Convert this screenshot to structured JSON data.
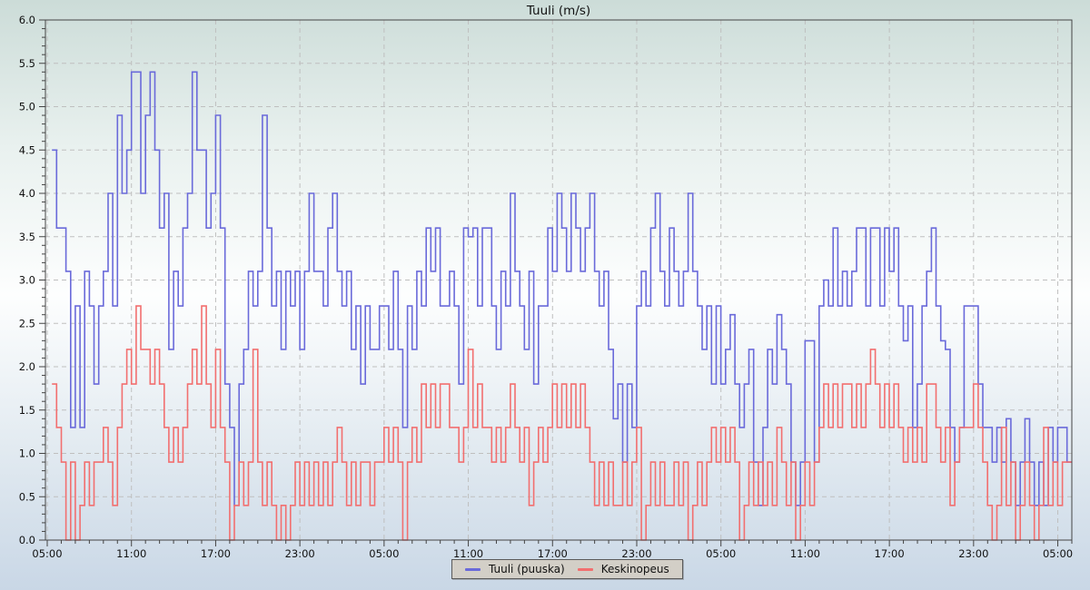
{
  "title": "Tuuli (m/s)",
  "legend": {
    "items": [
      {
        "label": "Tuuli (puuska)",
        "color": "#6a6ada"
      },
      {
        "label": "Keskinopeus",
        "color": "#f26f6f"
      }
    ]
  },
  "colors": {
    "background_top": "#ccdcd8",
    "background_middle": "#fdfefe",
    "background_bottom": "#c9d7e6",
    "grid": "#bfbfbf",
    "frame": "#444444",
    "text": "#111111",
    "legend_background": "#d3cfc7",
    "gust_line": "#6a6ada",
    "average_line": "#f26f6f"
  },
  "chart_data": {
    "type": "line",
    "step": true,
    "title": "Tuuli (m/s)",
    "xlabel": "",
    "ylabel": "",
    "ylim": [
      0.0,
      6.0
    ],
    "y_major_step": 0.5,
    "y_minor_step": 0.1,
    "y_tick_labels": [
      "0.0",
      "0.5",
      "1.0",
      "1.5",
      "2.0",
      "2.5",
      "3.0",
      "3.5",
      "4.0",
      "4.5",
      "5.0",
      "5.5",
      "6.0"
    ],
    "x_axis_hours_range": [
      4.87,
      78.0
    ],
    "x_major_step_hours": 6,
    "x_minor_step_hours": 1,
    "x_tick_hours": [
      5,
      11,
      17,
      23,
      29,
      35,
      41,
      47,
      53,
      59,
      65,
      71,
      77
    ],
    "x_tick_labels": [
      "05:00",
      "11:00",
      "17:00",
      "23:00",
      "05:00",
      "11:00",
      "17:00",
      "23:00",
      "05:00",
      "11:00",
      "17:00",
      "23:00",
      "05:00"
    ],
    "grid": "dashed",
    "legend_position": "bottom-center",
    "sample_start_hour": 5.3333,
    "sample_interval_hours": 0.3333,
    "series": [
      {
        "name": "Tuuli (puuska)",
        "color": "#6a6ada",
        "values": [
          4.5,
          3.6,
          3.6,
          3.1,
          1.3,
          2.7,
          1.3,
          3.1,
          2.7,
          1.8,
          2.7,
          3.1,
          4.0,
          2.7,
          4.9,
          4.0,
          4.5,
          5.4,
          5.4,
          4.0,
          4.9,
          5.4,
          4.5,
          3.6,
          4.0,
          2.2,
          3.1,
          2.7,
          3.6,
          4.0,
          5.4,
          4.5,
          4.5,
          3.6,
          4.0,
          4.9,
          3.6,
          1.8,
          1.3,
          0.4,
          1.8,
          2.2,
          3.1,
          2.7,
          3.1,
          4.9,
          3.6,
          2.7,
          3.1,
          2.2,
          3.1,
          2.7,
          3.1,
          2.2,
          3.1,
          4.0,
          3.1,
          3.1,
          2.7,
          3.6,
          4.0,
          3.1,
          2.7,
          3.1,
          2.2,
          2.7,
          1.8,
          2.7,
          2.2,
          2.2,
          2.7,
          2.7,
          2.2,
          3.1,
          2.2,
          1.3,
          2.7,
          2.2,
          3.1,
          2.7,
          3.6,
          3.1,
          3.6,
          2.7,
          2.7,
          3.1,
          2.7,
          1.8,
          3.6,
          3.5,
          3.6,
          2.7,
          3.6,
          3.6,
          2.7,
          2.2,
          3.1,
          2.7,
          4.0,
          3.1,
          2.7,
          2.2,
          3.1,
          1.8,
          2.7,
          2.7,
          3.6,
          3.1,
          4.0,
          3.6,
          3.1,
          4.0,
          3.6,
          3.1,
          3.6,
          4.0,
          3.1,
          2.7,
          3.1,
          2.2,
          1.4,
          1.8,
          0.9,
          1.8,
          1.3,
          2.7,
          3.1,
          2.7,
          3.6,
          4.0,
          3.1,
          2.7,
          3.6,
          3.1,
          2.7,
          3.1,
          4.0,
          3.1,
          2.7,
          2.2,
          2.7,
          1.8,
          2.7,
          1.8,
          2.2,
          2.6,
          1.8,
          1.3,
          1.8,
          2.2,
          0.9,
          0.4,
          1.3,
          2.2,
          1.8,
          2.6,
          2.2,
          1.8,
          0.9,
          0.4,
          0.9,
          2.3,
          2.3,
          0.9,
          2.7,
          3.0,
          2.7,
          3.6,
          2.7,
          3.1,
          2.7,
          3.1,
          3.6,
          3.6,
          2.7,
          3.6,
          3.6,
          2.7,
          3.6,
          3.1,
          3.6,
          2.7,
          2.3,
          2.7,
          1.3,
          1.8,
          2.7,
          3.1,
          3.6,
          2.7,
          2.3,
          2.2,
          1.3,
          0.9,
          1.3,
          2.7,
          2.7,
          2.7,
          1.8,
          1.3,
          1.3,
          0.9,
          1.3,
          0.9,
          1.4,
          0.9,
          0.4,
          0.9,
          1.4,
          0.9,
          0.4,
          0.9,
          0.4,
          1.3,
          0.9,
          1.3,
          1.3,
          0.9
        ]
      },
      {
        "name": "Keskinopeus",
        "color": "#f26f6f",
        "values": [
          1.8,
          1.3,
          0.9,
          0.0,
          0.9,
          0.0,
          0.4,
          0.9,
          0.4,
          0.9,
          0.9,
          1.3,
          0.9,
          0.4,
          1.3,
          1.8,
          2.2,
          1.8,
          2.7,
          2.2,
          2.2,
          1.8,
          2.2,
          1.8,
          1.3,
          0.9,
          1.3,
          0.9,
          1.3,
          1.8,
          2.2,
          1.8,
          2.7,
          1.8,
          1.3,
          2.2,
          1.3,
          0.9,
          0.0,
          0.4,
          0.9,
          0.4,
          0.9,
          2.2,
          0.9,
          0.4,
          0.9,
          0.4,
          0.0,
          0.4,
          0.0,
          0.4,
          0.9,
          0.4,
          0.9,
          0.4,
          0.9,
          0.4,
          0.9,
          0.4,
          0.9,
          1.3,
          0.9,
          0.4,
          0.9,
          0.4,
          0.9,
          0.9,
          0.4,
          0.9,
          0.9,
          1.3,
          0.9,
          1.3,
          0.9,
          0.0,
          0.9,
          1.3,
          0.9,
          1.8,
          1.3,
          1.8,
          1.3,
          1.8,
          1.8,
          1.3,
          1.3,
          0.9,
          1.3,
          2.2,
          1.3,
          1.8,
          1.3,
          1.3,
          0.9,
          1.3,
          0.9,
          1.3,
          1.8,
          1.3,
          0.9,
          1.3,
          0.4,
          0.9,
          1.3,
          0.9,
          1.3,
          1.8,
          1.3,
          1.8,
          1.3,
          1.8,
          1.3,
          1.8,
          1.3,
          0.9,
          0.4,
          0.9,
          0.4,
          0.9,
          0.4,
          0.4,
          0.9,
          0.4,
          0.9,
          1.3,
          0.0,
          0.4,
          0.9,
          0.4,
          0.9,
          0.4,
          0.4,
          0.9,
          0.4,
          0.9,
          0.0,
          0.4,
          0.9,
          0.4,
          0.9,
          1.3,
          0.9,
          1.3,
          0.9,
          1.3,
          0.9,
          0.0,
          0.4,
          0.9,
          0.4,
          0.9,
          0.4,
          0.9,
          0.4,
          1.3,
          0.9,
          0.4,
          0.9,
          0.0,
          0.4,
          0.9,
          0.4,
          0.9,
          1.3,
          1.8,
          1.3,
          1.8,
          1.3,
          1.8,
          1.8,
          1.3,
          1.8,
          1.3,
          1.8,
          2.2,
          1.8,
          1.3,
          1.8,
          1.3,
          1.8,
          1.3,
          0.9,
          1.3,
          0.9,
          1.3,
          0.9,
          1.8,
          1.8,
          1.3,
          0.9,
          1.3,
          0.4,
          0.9,
          1.3,
          1.3,
          1.3,
          1.8,
          1.3,
          0.9,
          0.4,
          0.0,
          0.4,
          1.3,
          0.4,
          0.9,
          0.0,
          0.4,
          0.9,
          0.4,
          0.0,
          0.4,
          1.3,
          0.4,
          0.9,
          0.4,
          0.9,
          0.9
        ]
      }
    ]
  }
}
